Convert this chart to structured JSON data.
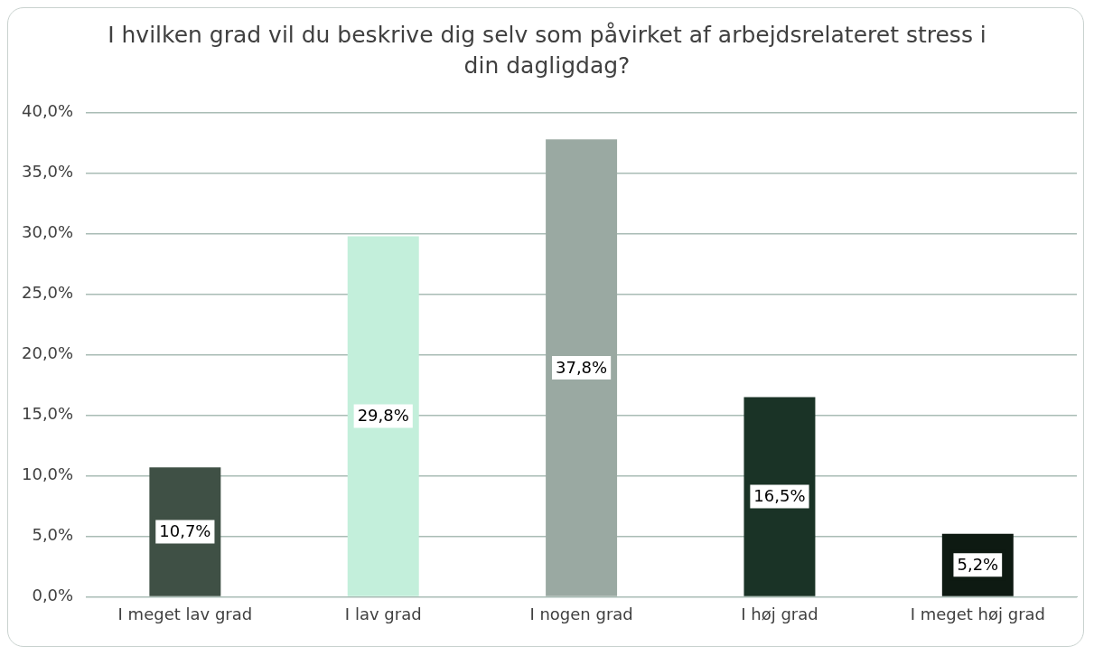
{
  "chart_data": {
    "type": "bar",
    "title": "I hvilken grad vil du beskrive dig selv som påvirket af arbejdsrelateret stress i din dagligdag?",
    "categories": [
      "I meget lav grad",
      "I lav grad",
      "I nogen grad",
      "I høj grad",
      "I meget høj grad"
    ],
    "values": [
      10.7,
      29.8,
      37.8,
      16.5,
      5.2
    ],
    "colors": [
      "#3f5045",
      "#c3efdb",
      "#9aa9a2",
      "#1a3326",
      "#0e1a12"
    ],
    "value_labels": [
      "10,7%",
      "29,8%",
      "37,8%",
      "16,5%",
      "5,2%"
    ],
    "ylim": [
      0,
      40
    ],
    "yticks": [
      {
        "value": 0,
        "label": "0,0%"
      },
      {
        "value": 5,
        "label": "5,0%"
      },
      {
        "value": 10,
        "label": "10,0%"
      },
      {
        "value": 15,
        "label": "15,0%"
      },
      {
        "value": 20,
        "label": "20,0%"
      },
      {
        "value": 25,
        "label": "25,0%"
      },
      {
        "value": 30,
        "label": "30,0%"
      },
      {
        "value": 35,
        "label": "35,0%"
      },
      {
        "value": 40,
        "label": "40,0%"
      }
    ],
    "grid": "y",
    "legend": false
  }
}
